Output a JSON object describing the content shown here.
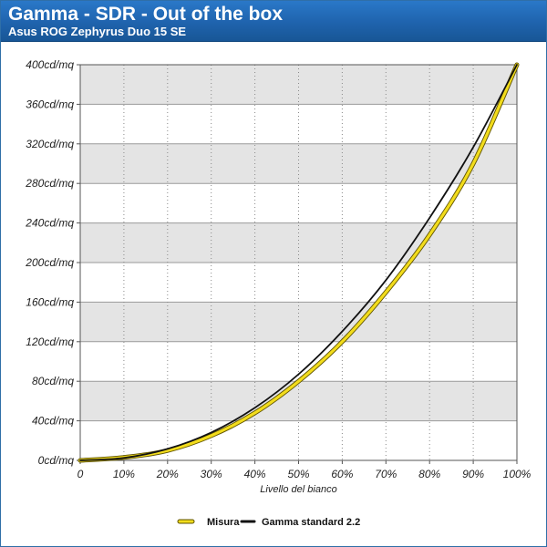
{
  "header": {
    "title": "Gamma - SDR - Out of the box",
    "subtitle": "Asus ROG Zephyrus Duo 15 SE"
  },
  "chart_data": {
    "type": "line",
    "title": "Gamma - SDR - Out of the box",
    "subtitle": "Asus ROG Zephyrus Duo 15 SE",
    "xlabel": "Livello del bianco",
    "ylabel": "",
    "x_ticks": [
      "0",
      "10%",
      "20%",
      "30%",
      "40%",
      "50%",
      "60%",
      "70%",
      "80%",
      "90%",
      "100%"
    ],
    "y_ticks": [
      "0cd/mq",
      "40cd/mq",
      "80cd/mq",
      "120cd/mq",
      "160cd/mq",
      "200cd/mq",
      "240cd/mq",
      "280cd/mq",
      "320cd/mq",
      "360cd/mq",
      "400cd/mq"
    ],
    "xlim": [
      0,
      100
    ],
    "ylim": [
      0,
      400
    ],
    "grid": {
      "vertical": "dotted",
      "horizontal_bands": true
    },
    "legend_position": "bottom-center",
    "x": [
      0,
      10,
      20,
      30,
      40,
      50,
      60,
      70,
      80,
      90,
      100
    ],
    "series": [
      {
        "name": "Misura",
        "color": "#f2dc1c",
        "values": [
          0,
          3,
          10,
          25,
          48,
          80,
          120,
          170,
          228,
          300,
          400
        ]
      },
      {
        "name": "Gamma standard 2.2",
        "color": "#111111",
        "values": [
          0,
          2.5,
          11.6,
          28.2,
          53.2,
          87.1,
          130.4,
          182.2,
          245.2,
          316.6,
          400
        ]
      }
    ]
  }
}
